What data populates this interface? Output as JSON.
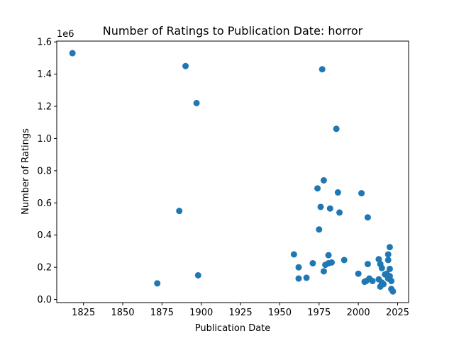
{
  "chart_data": {
    "type": "scatter",
    "title": "Number of Ratings to Publication Date: horror",
    "xlabel": "Publication Date",
    "ylabel": "Number of Ratings",
    "y_offset_label": "1e6",
    "xlim": [
      1808,
      2032
    ],
    "ylim": [
      -0.0195,
      1.605
    ],
    "y_scale_multiplier": 1000000,
    "x_ticks": [
      1825,
      1850,
      1875,
      1900,
      1925,
      1950,
      1975,
      2000,
      2025
    ],
    "x_tick_labels": [
      "1825",
      "1850",
      "1875",
      "1900",
      "1925",
      "1950",
      "1975",
      "2000",
      "2025"
    ],
    "y_ticks": [
      0.0,
      0.2,
      0.4,
      0.6,
      0.8,
      1.0,
      1.2,
      1.4,
      1.6
    ],
    "y_tick_labels": [
      "0.0",
      "0.2",
      "0.4",
      "0.6",
      "0.8",
      "1.0",
      "1.2",
      "1.4",
      "1.6"
    ],
    "grid": false,
    "marker_color": "#1f77b4",
    "series": [
      {
        "x": [
          1818,
          1872,
          1886,
          1890,
          1897,
          1898,
          1959,
          1962,
          1962,
          1967,
          1971,
          1974,
          1975,
          1976,
          1977,
          1978,
          1978,
          1979,
          1981,
          1981,
          1982,
          1983,
          1986,
          1987,
          1988,
          1991,
          2000,
          2002,
          2004,
          2005,
          2006,
          2006,
          2007,
          2009,
          2013,
          2013,
          2014,
          2014,
          2015,
          2015,
          2016,
          2017,
          2018,
          2019,
          2019,
          2019,
          2020,
          2020,
          2020,
          2021,
          2021,
          2022
        ],
        "y": [
          1.53,
          0.1,
          0.55,
          1.45,
          1.22,
          0.15,
          0.28,
          0.2,
          0.13,
          0.135,
          0.225,
          0.69,
          0.435,
          0.575,
          1.43,
          0.74,
          0.175,
          0.215,
          0.225,
          0.275,
          0.565,
          0.23,
          1.06,
          0.665,
          0.54,
          0.245,
          0.16,
          0.66,
          0.11,
          0.115,
          0.51,
          0.22,
          0.13,
          0.115,
          0.25,
          0.125,
          0.08,
          0.22,
          0.195,
          0.105,
          0.095,
          0.155,
          0.16,
          0.28,
          0.245,
          0.13,
          0.325,
          0.19,
          0.145,
          0.115,
          0.065,
          0.05
        ]
      }
    ]
  }
}
